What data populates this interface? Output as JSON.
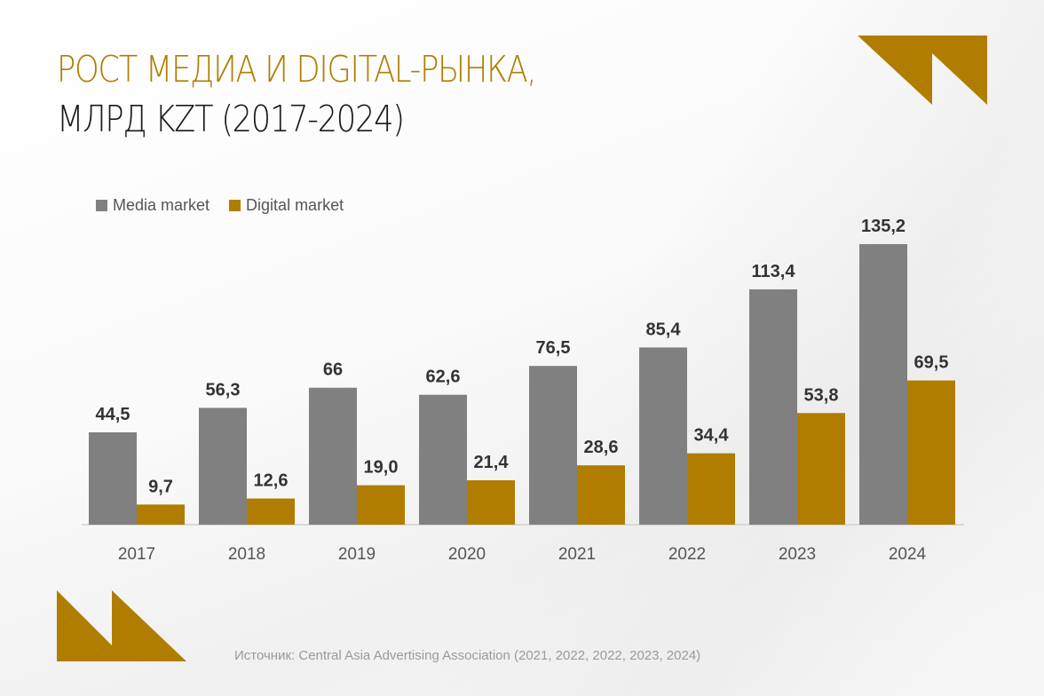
{
  "title": {
    "line1": "РОСТ МЕДИА И DIGITAL-РЫНКА,",
    "line2": "МЛРД KZT (2017-2024)"
  },
  "source": "Источник: Central Asia Advertising Association  (2021, 2022, 2022, 2023, 2024)",
  "colors": {
    "media": "#808080",
    "digital": "#b07d00",
    "accent": "#b07d00"
  },
  "chart_data": {
    "type": "bar",
    "title": "РОСТ МЕДИА И DIGITAL-РЫНКА, МЛРД KZT (2017-2024)",
    "categories": [
      "2017",
      "2018",
      "2019",
      "2020",
      "2021",
      "2022",
      "2023",
      "2024"
    ],
    "series": [
      {
        "name": "Media market",
        "values": [
          44.5,
          56.3,
          66,
          62.6,
          76.5,
          85.4,
          113.4,
          135.2
        ],
        "labels": [
          "44,5",
          "56,3",
          "66",
          "62,6",
          "76,5",
          "85,4",
          "113,4",
          "135,2"
        ],
        "color": "#808080"
      },
      {
        "name": "Digital market",
        "values": [
          9.7,
          12.6,
          19.0,
          21.4,
          28.6,
          34.4,
          53.8,
          69.5
        ],
        "labels": [
          "9,7",
          "12,6",
          "19,0",
          "21,4",
          "28,6",
          "34,4",
          "53,8",
          "69,5"
        ],
        "color": "#b07d00"
      }
    ],
    "ylim": [
      0,
      135.2
    ],
    "grid": false,
    "legend": "top-left"
  }
}
